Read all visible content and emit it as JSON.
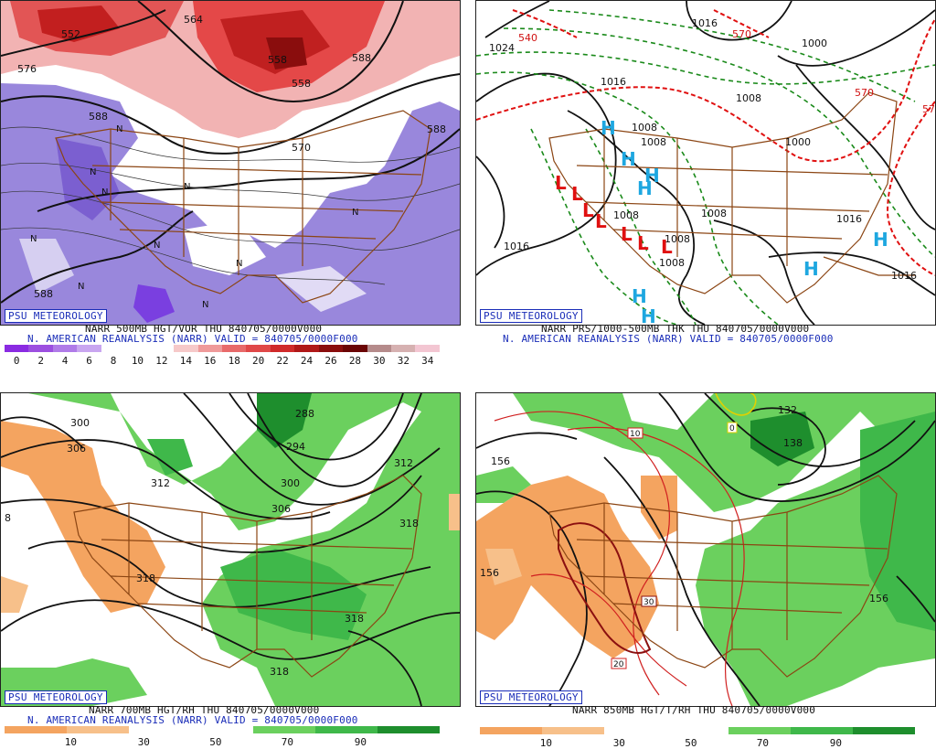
{
  "panels": {
    "top_left": {
      "badge": "PSU METEOROLOGY",
      "title_line1": "NARR 500MB HGT/VOR THU 840705/0000V000",
      "title_line2": "N. AMERICAN REANALYSIS (NARR) VALID = 840705/0000F000",
      "scale_labels": [
        "0",
        "2",
        "4",
        "6",
        "8",
        "10",
        "12",
        "14",
        "16",
        "18",
        "20",
        "22",
        "24",
        "26",
        "28",
        "30",
        "32",
        "34"
      ],
      "contour_labels": [
        "552",
        "564",
        "576",
        "588",
        "588",
        "558",
        "588",
        "588",
        "570",
        "558"
      ],
      "marker_labels": [
        "N",
        "N",
        "N",
        "N",
        "N",
        "N",
        "N",
        "N",
        "N",
        "N"
      ]
    },
    "top_right": {
      "badge": "PSU METEOROLOGY",
      "title_line1": "NARR PRS/1000-500MB THK THU 840705/0000V000",
      "title_line2": "N. AMERICAN REANALYSIS (NARR) VALID = 840705/0000F000",
      "contour_labels": [
        "1024",
        "1016",
        "1016",
        "1000",
        "1008",
        "1008",
        "1008",
        "1008",
        "1008",
        "1016",
        "1016",
        "1016",
        "1000",
        "1008",
        "1008"
      ],
      "thickness_labels": [
        "540",
        "570",
        "570",
        "57"
      ],
      "high_labels": [
        "H",
        "H",
        "H",
        "H",
        "H",
        "H",
        "H",
        "H"
      ],
      "low_labels": [
        "L",
        "L",
        "L",
        "L",
        "L",
        "L",
        "L"
      ]
    },
    "bottom_left": {
      "badge": "PSU METEOROLOGY",
      "title_line1": "NARR 700MB HGT/RH THU 840705/0000V000",
      "title_line2": "N. AMERICAN REANALYSIS (NARR) VALID = 840705/0000F000",
      "scale_labels": [
        "10",
        "30",
        "50",
        "70",
        "90"
      ],
      "contour_labels": [
        "300",
        "306",
        "312",
        "318",
        "318",
        "288",
        "294",
        "300",
        "306",
        "312",
        "318",
        "318",
        "8"
      ]
    },
    "bottom_right": {
      "badge": "PSU METEOROLOGY",
      "title_line1": "NARR 850MB HGT/T/RH THU 840705/0000V000",
      "scale_labels": [
        "10",
        "30",
        "50",
        "70",
        "90"
      ],
      "contour_labels": [
        "156",
        "132",
        "138",
        "156",
        "156"
      ],
      "temp_labels": [
        "10",
        "0",
        "30",
        "20"
      ]
    }
  },
  "colors": {
    "vorticity_scale": [
      "#8a2be2",
      "#9c4fe0",
      "#b07be8",
      "#c9a6f0",
      "#ffffff",
      "#ffffff",
      "#ffffff",
      "#f6c9c9",
      "#ef9a9a",
      "#e86a6a",
      "#e04848",
      "#d02a2a",
      "#b01818",
      "#8a0d0d",
      "#6a0505",
      "#b58b8b",
      "#d6b1b1",
      "#f3c6d2"
    ],
    "rh_scale": [
      "#f4a460",
      "#f7c08a",
      "#ffffff",
      "#ffffff",
      "#6bd05e",
      "#3fb84a",
      "#1e8e2d"
    ],
    "map_border": "#8b4513",
    "contour_dashed_green": "#1a8a1a",
    "high_blue": "#1ea7e0",
    "low_red": "#e01010"
  }
}
